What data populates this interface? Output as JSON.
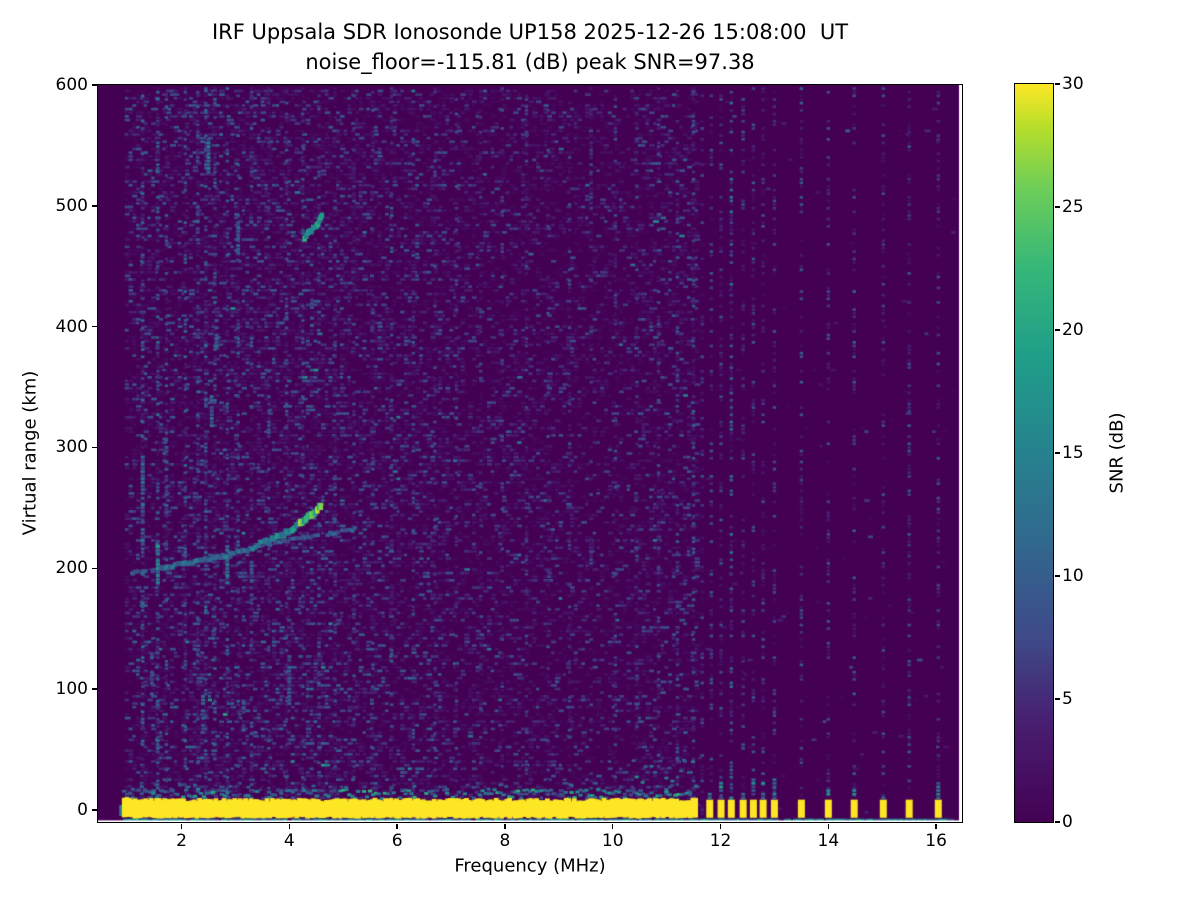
{
  "chart_data": {
    "type": "heatmap",
    "title_line1": "IRF Uppsala SDR Ionosonde UP158 2025-12-26 15:08:00  UT",
    "title_line2": "noise_floor=-115.81 (dB) peak SNR=97.38",
    "xlabel": "Frequency (MHz)",
    "ylabel": "Virtual range (km)",
    "x_range_mhz": [
      0.45,
      16.48
    ],
    "y_range_km": [
      -10,
      600
    ],
    "x_ticks": [
      2,
      4,
      6,
      8,
      10,
      12,
      14,
      16
    ],
    "y_ticks": [
      0,
      100,
      200,
      300,
      400,
      500,
      600
    ],
    "colorbar": {
      "label": "SNR (dB)",
      "min": 0,
      "max": 30,
      "ticks": [
        0,
        5,
        10,
        15,
        20,
        25,
        30
      ]
    },
    "colormap": {
      "name": "viridis",
      "stops": [
        [
          0,
          "#440154"
        ],
        [
          0.13,
          "#481d6f"
        ],
        [
          0.25,
          "#3e4a89"
        ],
        [
          0.38,
          "#31688e"
        ],
        [
          0.5,
          "#26828e"
        ],
        [
          0.63,
          "#1f9e89"
        ],
        [
          0.75,
          "#35b779"
        ],
        [
          0.86,
          "#6ece58"
        ],
        [
          0.94,
          "#b5de2b"
        ],
        [
          1,
          "#fde725"
        ]
      ]
    },
    "colors": {
      "figure_bg": "#ffffff",
      "plot_bg": "#440154",
      "text": "#000000"
    },
    "seed": 42,
    "noise": {
      "df_mhz": 0.07,
      "dr_km": 3.0,
      "f_start": 0.98,
      "f_end": 16.35,
      "bands": [
        {
          "f0": 0.98,
          "f1": 2.2,
          "p": 0.42,
          "vmax": 9
        },
        {
          "f0": 2.2,
          "f1": 5.0,
          "p": 0.48,
          "vmax": 9
        },
        {
          "f0": 5.0,
          "f1": 7.0,
          "p": 0.42,
          "vmax": 8
        },
        {
          "f0": 7.0,
          "f1": 9.0,
          "p": 0.34,
          "vmax": 7
        },
        {
          "f0": 9.0,
          "f1": 10.4,
          "p": 0.27,
          "vmax": 7
        },
        {
          "f0": 10.4,
          "f1": 11.56,
          "p": 0.34,
          "vmax": 8
        },
        {
          "f0": 11.56,
          "f1": 16.35,
          "p": 0.006,
          "vmax": 6
        }
      ]
    },
    "stripes_mhz": [
      {
        "f": 1.28,
        "p": 0.5,
        "vmax": 11
      },
      {
        "f": 1.56,
        "p": 0.55,
        "vmax": 12
      },
      {
        "f": 1.72,
        "p": 0.45,
        "vmax": 9
      },
      {
        "f": 2.07,
        "p": 0.5,
        "vmax": 10
      },
      {
        "f": 2.3,
        "p": 0.45,
        "vmax": 9
      },
      {
        "f": 2.45,
        "p": 0.5,
        "vmax": 11
      },
      {
        "f": 2.62,
        "p": 0.48,
        "vmax": 10
      },
      {
        "f": 2.85,
        "p": 0.45,
        "vmax": 10
      },
      {
        "f": 3.05,
        "p": 0.45,
        "vmax": 10
      },
      {
        "f": 3.3,
        "p": 0.42,
        "vmax": 9
      },
      {
        "f": 3.62,
        "p": 0.4,
        "vmax": 8
      },
      {
        "f": 3.95,
        "p": 0.45,
        "vmax": 9
      },
      {
        "f": 4.25,
        "p": 0.4,
        "vmax": 8
      },
      {
        "f": 4.55,
        "p": 0.42,
        "vmax": 9
      },
      {
        "f": 4.85,
        "p": 0.38,
        "vmax": 8
      },
      {
        "f": 5.2,
        "p": 0.4,
        "vmax": 8
      },
      {
        "f": 5.55,
        "p": 0.36,
        "vmax": 8
      },
      {
        "f": 5.9,
        "p": 0.4,
        "vmax": 9
      },
      {
        "f": 6.3,
        "p": 0.36,
        "vmax": 8
      },
      {
        "f": 6.7,
        "p": 0.34,
        "vmax": 7
      },
      {
        "f": 7.1,
        "p": 0.36,
        "vmax": 8
      },
      {
        "f": 7.55,
        "p": 0.32,
        "vmax": 7
      },
      {
        "f": 7.95,
        "p": 0.36,
        "vmax": 8
      },
      {
        "f": 8.4,
        "p": 0.32,
        "vmax": 7
      },
      {
        "f": 8.8,
        "p": 0.34,
        "vmax": 8
      },
      {
        "f": 9.2,
        "p": 0.3,
        "vmax": 7
      },
      {
        "f": 9.6,
        "p": 0.3,
        "vmax": 7
      },
      {
        "f": 10.05,
        "p": 0.34,
        "vmax": 8
      },
      {
        "f": 10.45,
        "p": 0.3,
        "vmax": 7
      },
      {
        "f": 10.85,
        "p": 0.32,
        "vmax": 7
      },
      {
        "f": 11.2,
        "p": 0.34,
        "vmax": 8
      },
      {
        "f": 11.5,
        "p": 0.42,
        "vmax": 9
      }
    ],
    "rfi_columns_mhz": [
      {
        "f": 11.66,
        "p": 0.3,
        "vmax": 7
      },
      {
        "f": 11.83,
        "p": 0.35,
        "vmax": 8
      },
      {
        "f": 12.01,
        "p": 0.4,
        "vmax": 8
      },
      {
        "f": 12.2,
        "p": 0.6,
        "vmax": 12
      },
      {
        "f": 12.42,
        "p": 0.4,
        "vmax": 8
      },
      {
        "f": 12.61,
        "p": 0.35,
        "vmax": 8
      },
      {
        "f": 12.79,
        "p": 0.38,
        "vmax": 8
      },
      {
        "f": 13.0,
        "p": 0.35,
        "vmax": 8
      },
      {
        "f": 13.5,
        "p": 0.4,
        "vmax": 9
      },
      {
        "f": 14.0,
        "p": 0.38,
        "vmax": 8
      },
      {
        "f": 14.48,
        "p": 0.42,
        "vmax": 9
      },
      {
        "f": 15.02,
        "p": 0.32,
        "vmax": 7
      },
      {
        "f": 15.5,
        "p": 0.38,
        "vmax": 8
      },
      {
        "f": 16.04,
        "p": 0.35,
        "vmax": 8
      }
    ],
    "ground_echo": {
      "f0": 0.93,
      "f1": 11.56,
      "r_top": 8.5,
      "r_bot": -6.5,
      "lead_f": 0.88,
      "fringe": {
        "p": 0.92,
        "r0": 9,
        "r1": 17,
        "vmin": 5,
        "vmax": 18
      },
      "fringe_green_zones": [
        [
          2.0,
          2.6
        ],
        [
          4.9,
          5.9
        ],
        [
          6.3,
          6.75
        ],
        [
          7.5,
          8.7
        ],
        [
          9.2,
          9.9
        ],
        [
          10.7,
          11.3
        ]
      ],
      "high_fringe": {
        "f0": 10.3,
        "f1": 11.56,
        "r_max": 42,
        "p": 0.45
      },
      "bottom_line": {
        "f0": 0.95,
        "f1": 16.33,
        "r": -8.3,
        "p": 0.93
      }
    },
    "sounding_bars_mhz": [
      11.8,
      12.01,
      12.2,
      12.42,
      12.61,
      12.79,
      13.0,
      13.5,
      14.0,
      14.48,
      15.02,
      15.5,
      16.04
    ],
    "bar_width_mhz": 0.13,
    "bar_tips": {
      "p": 0.75,
      "r_max": 32
    },
    "echo_trace": {
      "segments": [
        {
          "pts": [
            [
              1.04,
              196
            ],
            [
              1.6,
              199
            ]
          ],
          "v": 9,
          "thick_km": 3.5,
          "p": 0.75
        },
        {
          "pts": [
            [
              1.6,
              200
            ],
            [
              2.2,
              205
            ],
            [
              2.9,
              211
            ],
            [
              3.45,
              219
            ]
          ],
          "v": 12,
          "thick_km": 4,
          "p": 0.9
        },
        {
          "pts": [
            [
              3.45,
              220
            ],
            [
              3.9,
              228
            ],
            [
              4.2,
              237
            ]
          ],
          "v": 15,
          "thick_km": 5,
          "p": 0.95
        },
        {
          "pts": [
            [
              4.2,
              237
            ],
            [
              4.45,
              246
            ],
            [
              4.58,
              252
            ]
          ],
          "v": 22,
          "thick_km": 6,
          "p": 1.0
        },
        {
          "pts": [
            [
              3.5,
              219
            ],
            [
              4.2,
              225
            ],
            [
              4.8,
              229
            ],
            [
              5.3,
              233
            ]
          ],
          "v": 9,
          "thick_km": 3,
          "p": 0.8
        },
        {
          "pts": [
            [
              4.28,
              474
            ],
            [
              4.5,
              484
            ],
            [
              4.6,
              492
            ]
          ],
          "v": 17,
          "thick_km": 5,
          "p": 0.9
        }
      ]
    },
    "blobs": [
      {
        "f": 1.28,
        "r0": 220,
        "r1": 292,
        "vmax": 13,
        "p": 0.7
      },
      {
        "f": 1.56,
        "r0": 188,
        "r1": 220,
        "vmax": 20,
        "p": 0.85
      },
      {
        "f": 1.72,
        "r0": 240,
        "r1": 300,
        "vmax": 10,
        "p": 0.6
      },
      {
        "f": 2.5,
        "r0": 528,
        "r1": 556,
        "vmax": 14,
        "p": 0.75
      },
      {
        "f": 2.65,
        "r0": 378,
        "r1": 406,
        "vmax": 15,
        "p": 0.8
      },
      {
        "f": 2.56,
        "r0": 315,
        "r1": 348,
        "vmax": 12,
        "p": 0.65
      },
      {
        "f": 2.85,
        "r0": 182,
        "r1": 222,
        "vmax": 15,
        "p": 0.7
      },
      {
        "f": 3.05,
        "r0": 455,
        "r1": 488,
        "vmax": 13,
        "p": 0.7
      },
      {
        "f": 3.3,
        "r0": 178,
        "r1": 208,
        "vmax": 11,
        "p": 0.6
      },
      {
        "f": 4.42,
        "r0": 398,
        "r1": 424,
        "vmax": 12,
        "p": 0.65
      },
      {
        "f": 2.3,
        "r0": 472,
        "r1": 500,
        "vmax": 11,
        "p": 0.6
      },
      {
        "f": 4.0,
        "r0": 88,
        "r1": 128,
        "vmax": 10,
        "p": 0.55
      },
      {
        "f": 1.45,
        "r0": 90,
        "r1": 130,
        "vmax": 11,
        "p": 0.6
      },
      {
        "f": 2.4,
        "r0": 58,
        "r1": 95,
        "vmax": 12,
        "p": 0.65
      },
      {
        "f": 3.15,
        "r0": 60,
        "r1": 92,
        "vmax": 11,
        "p": 0.6
      }
    ]
  }
}
